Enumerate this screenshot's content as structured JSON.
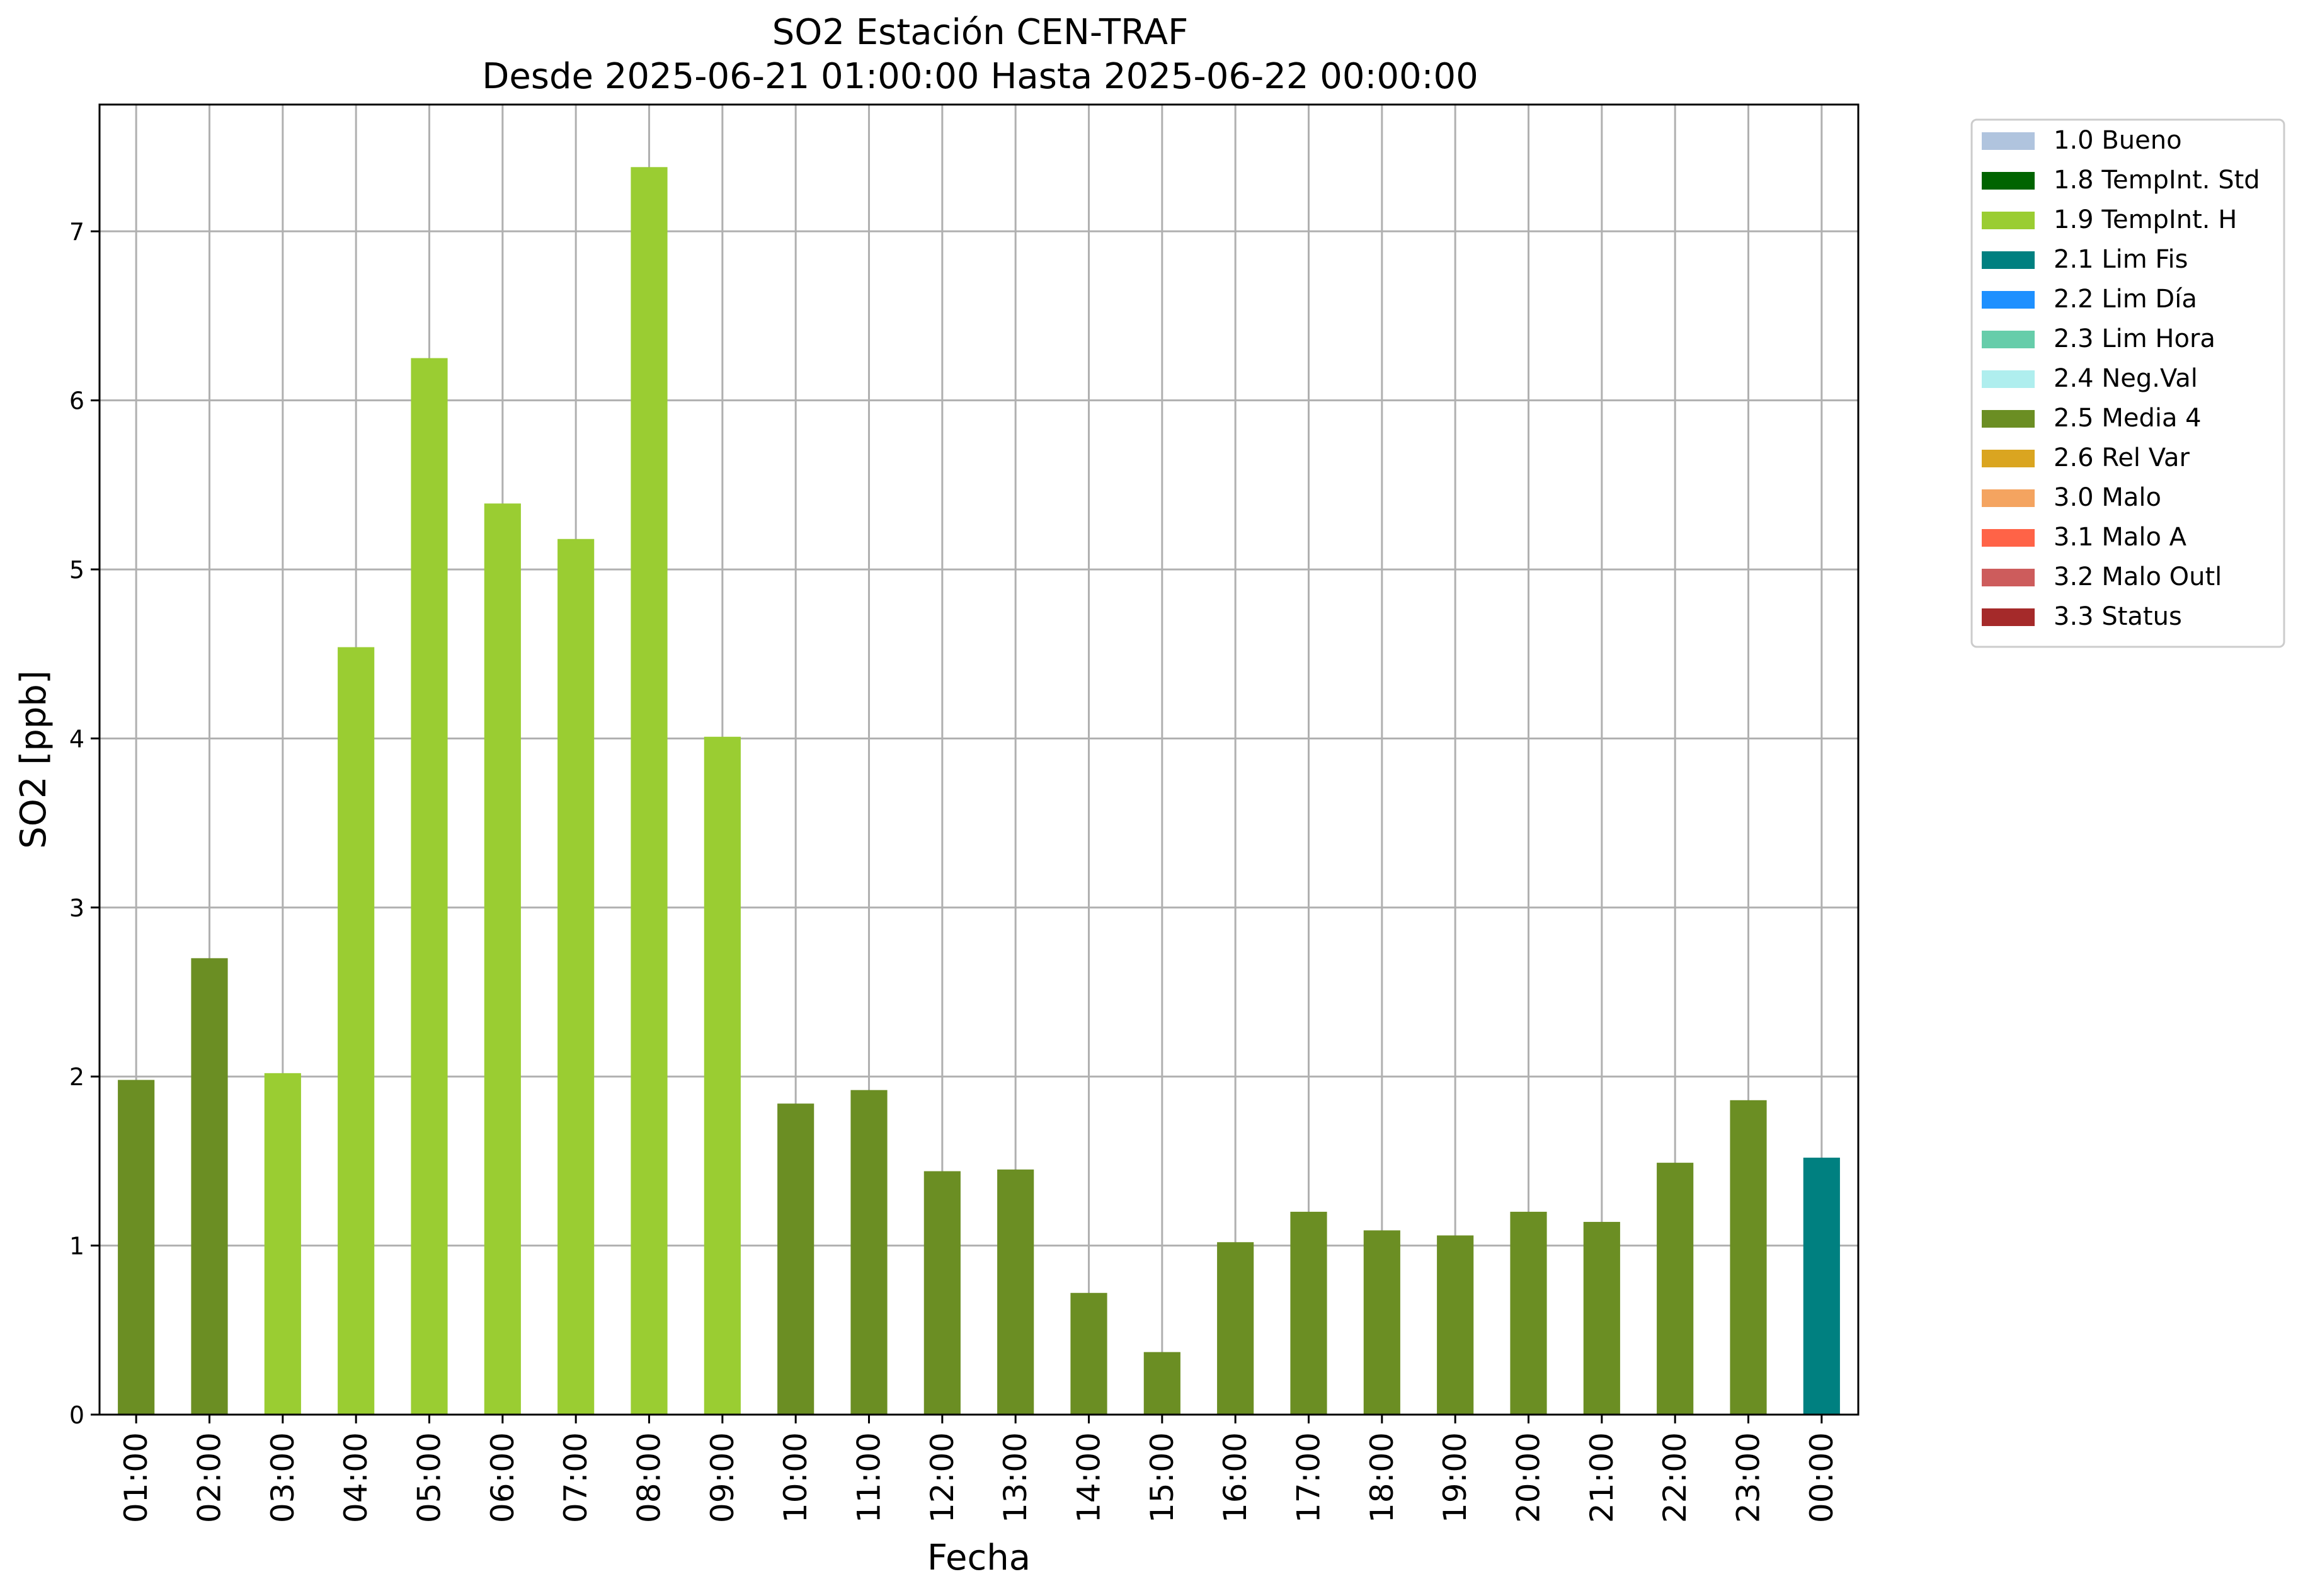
{
  "chart_data": {
    "type": "bar",
    "title": "SO2 Estación CEN-TRAF",
    "subtitle": "Desde 2025-06-21 01:00:00 Hasta 2025-06-22 00:00:00",
    "xlabel": "Fecha",
    "ylabel": "SO2 [ppb]",
    "ylim": [
      0,
      7.75
    ],
    "yticks": [
      "0",
      "1",
      "2",
      "3",
      "4",
      "5",
      "6",
      "7"
    ],
    "grid": true,
    "legend_position": "outside-top-right",
    "categories": [
      "01:00",
      "02:00",
      "03:00",
      "04:00",
      "05:00",
      "06:00",
      "07:00",
      "08:00",
      "09:00",
      "10:00",
      "11:00",
      "12:00",
      "13:00",
      "14:00",
      "15:00",
      "16:00",
      "17:00",
      "18:00",
      "19:00",
      "20:00",
      "21:00",
      "22:00",
      "23:00",
      "00:00"
    ],
    "values": [
      1.98,
      2.7,
      2.02,
      4.54,
      6.25,
      5.39,
      5.18,
      7.38,
      4.01,
      1.84,
      1.92,
      1.44,
      1.45,
      0.72,
      0.37,
      1.02,
      1.2,
      1.09,
      1.06,
      1.2,
      1.14,
      1.49,
      1.86,
      1.52
    ],
    "flags": [
      "2.5 Media 4",
      "2.5 Media 4",
      "1.9 TempInt. H",
      "1.9 TempInt. H",
      "1.9 TempInt. H",
      "1.9 TempInt. H",
      "1.9 TempInt. H",
      "1.9 TempInt. H",
      "1.9 TempInt. H",
      "2.5 Media 4",
      "2.5 Media 4",
      "2.5 Media 4",
      "2.5 Media 4",
      "2.5 Media 4",
      "2.5 Media 4",
      "2.5 Media 4",
      "2.5 Media 4",
      "2.5 Media 4",
      "2.5 Media 4",
      "2.5 Media 4",
      "2.5 Media 4",
      "2.5 Media 4",
      "2.5 Media 4",
      "2.1 Lim Fis"
    ],
    "legend": [
      {
        "label": "1.0 Bueno",
        "color": "#b0c4de"
      },
      {
        "label": "1.8 TempInt. Std",
        "color": "#006400"
      },
      {
        "label": "1.9 TempInt. H",
        "color": "#9acd32"
      },
      {
        "label": "2.1 Lim Fis",
        "color": "#008080"
      },
      {
        "label": "2.2 Lim Día",
        "color": "#1e90ff"
      },
      {
        "label": "2.3 Lim Hora",
        "color": "#66cdaa"
      },
      {
        "label": "2.4 Neg.Val",
        "color": "#afeeee"
      },
      {
        "label": "2.5 Media 4",
        "color": "#6b8e23"
      },
      {
        "label": "2.6 Rel Var",
        "color": "#daa520"
      },
      {
        "label": "3.0 Malo",
        "color": "#f4a460"
      },
      {
        "label": "3.1 Malo A",
        "color": "#ff6347"
      },
      {
        "label": "3.2 Malo Outl",
        "color": "#cd5c5c"
      },
      {
        "label": "3.3 Status",
        "color": "#a52a2a"
      }
    ]
  }
}
